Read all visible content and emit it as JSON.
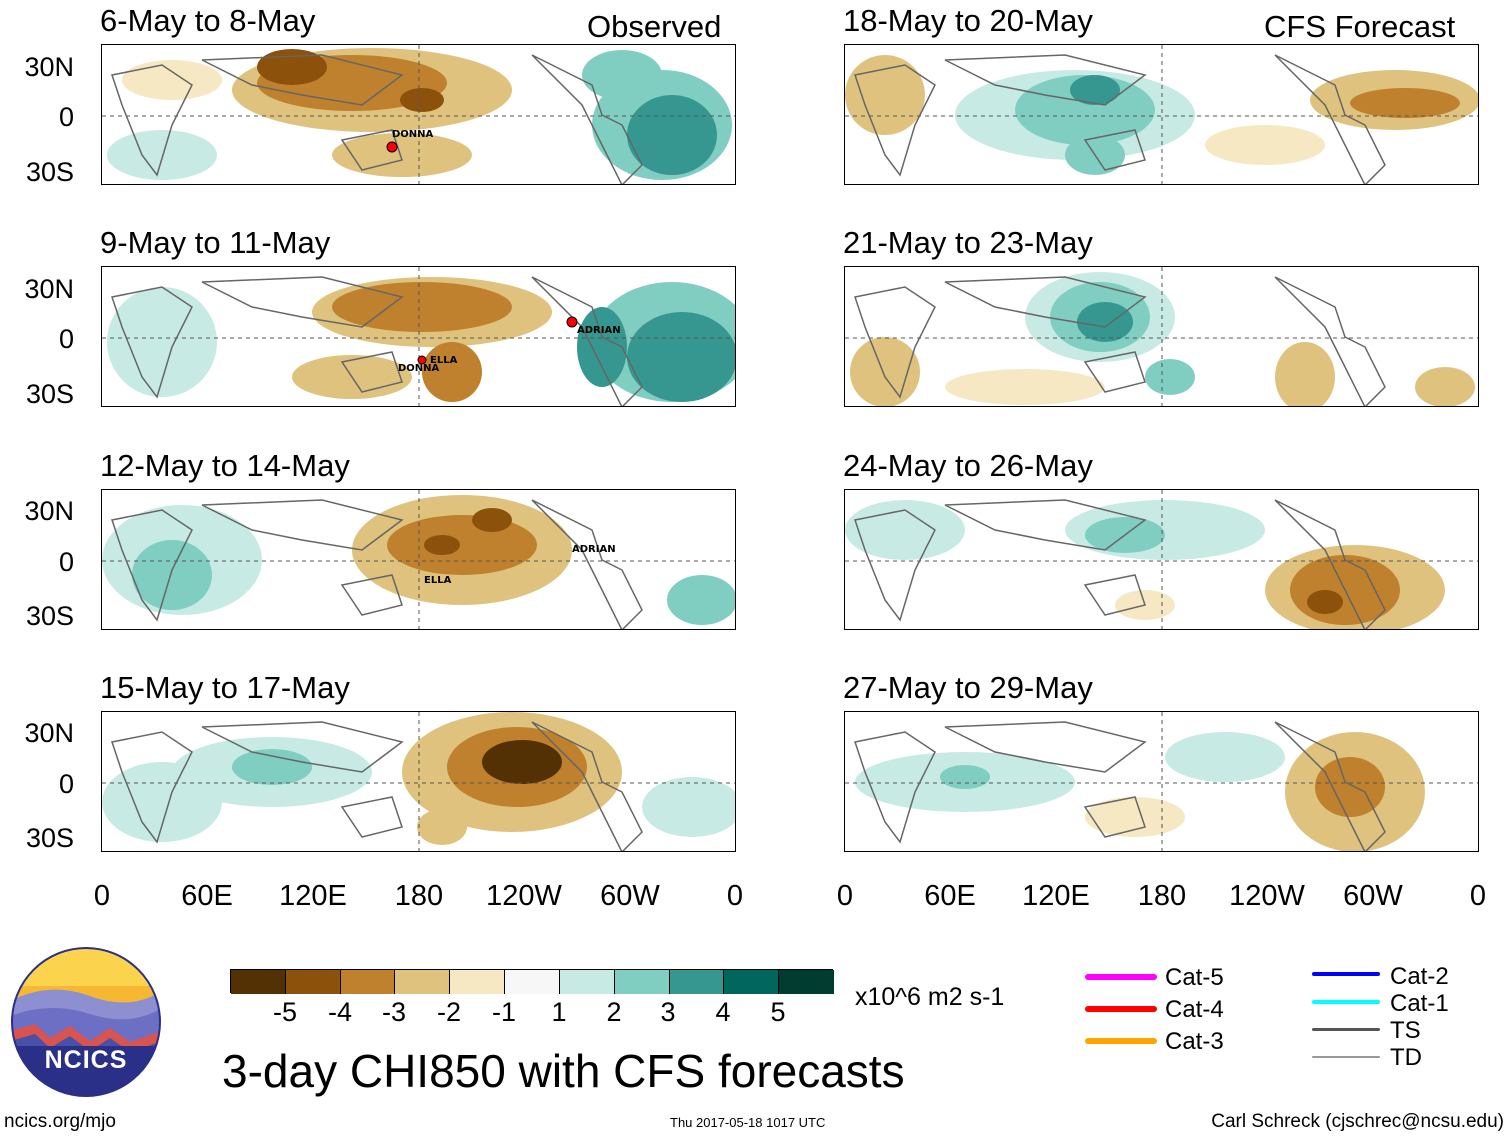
{
  "header": {
    "observed_label": "Observed",
    "forecast_label": "CFS Forecast"
  },
  "panels": [
    {
      "title": "6-May to 8-May",
      "storms": [
        "DONNA"
      ]
    },
    {
      "title": "9-May to 11-May",
      "storms": [
        "ADRIAN",
        "ELLA",
        "DONNA"
      ]
    },
    {
      "title": "12-May to 14-May",
      "storms": [
        "ADRIAN",
        "ELLA"
      ]
    },
    {
      "title": "15-May to 17-May",
      "storms": []
    },
    {
      "title": "18-May to 20-May",
      "storms": []
    },
    {
      "title": "21-May to 23-May",
      "storms": []
    },
    {
      "title": "24-May to 26-May",
      "storms": []
    },
    {
      "title": "27-May to 29-May",
      "storms": []
    }
  ],
  "latitude_labels": [
    "30N",
    "0",
    "30S"
  ],
  "longitude_labels": [
    "0",
    "60E",
    "120E",
    "180",
    "120W",
    "60W",
    "0"
  ],
  "colorbar": {
    "ticks": [
      "-5",
      "-4",
      "-3",
      "-2",
      "-1",
      "1",
      "2",
      "3",
      "4",
      "5"
    ],
    "units": "x10^6 m2 s-1",
    "colors": [
      "#543005",
      "#8c510a",
      "#bf812d",
      "#dfc27d",
      "#f6e8c3",
      "#f7f7f7",
      "#c7eae5",
      "#80cdc1",
      "#35978f",
      "#01665e",
      "#003c30"
    ]
  },
  "storm_legend": [
    {
      "label": "Cat-5",
      "color": "#ff00ff"
    },
    {
      "label": "Cat-4",
      "color": "#ff0000"
    },
    {
      "label": "Cat-3",
      "color": "#ffa500"
    },
    {
      "label": "Cat-2",
      "color": "#0000ff"
    },
    {
      "label": "Cat-1",
      "color": "#00ffff"
    },
    {
      "label": "TS",
      "color": "#555555"
    },
    {
      "label": "TD",
      "color": "#999999"
    }
  ],
  "logo": {
    "text": "NCICS"
  },
  "main_title": "3-day CHI850 with CFS forecasts",
  "footer": {
    "url": "ncics.org/mjo",
    "timestamp": "Thu 2017-05-18 1017 UTC",
    "credit": "Carl Schreck (cjschrec@ncsu.edu)"
  }
}
